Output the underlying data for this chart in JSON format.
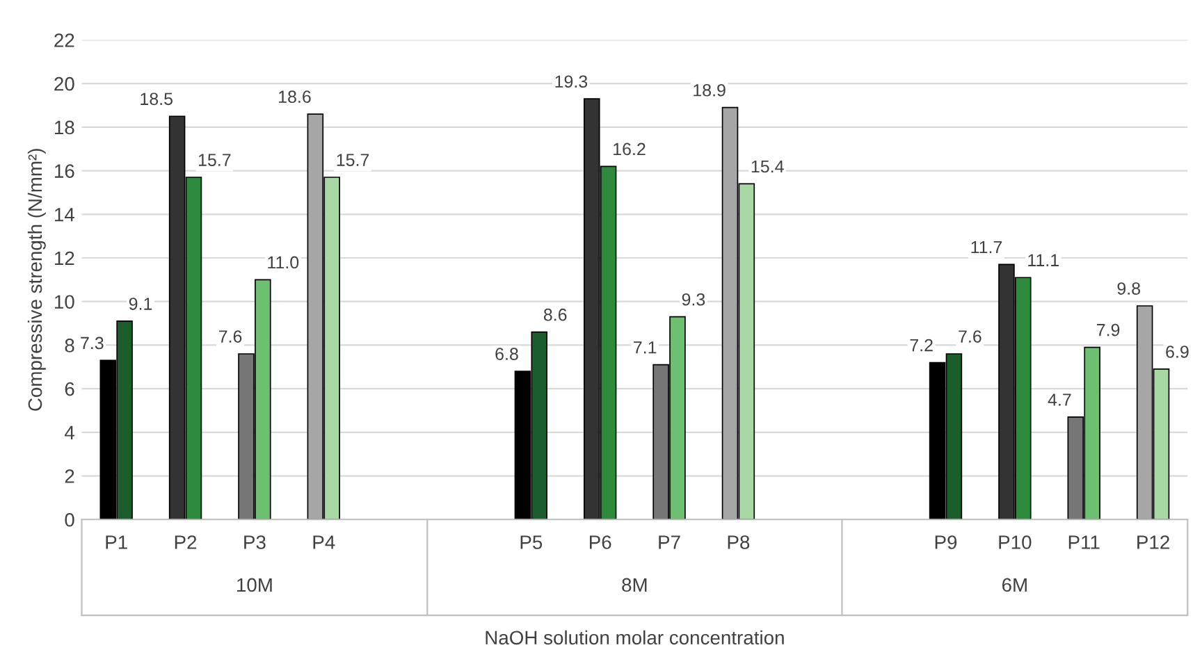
{
  "chart_data": {
    "type": "bar",
    "ylabel": "Compressive strength (N/mm²)",
    "xlabel": "NaOH solution molar concentration",
    "categories": [
      "P1",
      "P2",
      "P3",
      "P4",
      null,
      null,
      "P5",
      "P6",
      "P7",
      "P8",
      null,
      null,
      "P9",
      "P10",
      "P11",
      "P12"
    ],
    "series": [
      {
        "values": [
          7.3,
          18.5,
          7.6,
          18.6,
          null,
          null,
          6.8,
          19.3,
          7.1,
          18.9,
          null,
          null,
          7.2,
          11.7,
          4.7,
          9.8
        ],
        "value_labels": [
          "7.3",
          "18.5",
          "7.6",
          "18.6",
          null,
          null,
          "6.8",
          "19.3",
          "7.1",
          "18.9",
          null,
          null,
          "7.2",
          "11.7",
          "4.7",
          "9.8"
        ],
        "colors": [
          "#000000",
          "#333333",
          "#767676",
          "#a6a6a6",
          null,
          null,
          "#000000",
          "#333333",
          "#767676",
          "#a6a6a6",
          null,
          null,
          "#000000",
          "#333333",
          "#767676",
          "#a6a6a6"
        ]
      },
      {
        "values": [
          9.1,
          15.7,
          11.0,
          15.7,
          null,
          null,
          8.6,
          16.2,
          9.3,
          15.4,
          null,
          null,
          7.6,
          11.1,
          7.9,
          6.9
        ],
        "value_labels": [
          "9.1",
          "15.7",
          "11.0",
          "15.7",
          null,
          null,
          "8.6",
          "16.2",
          "9.3",
          "15.4",
          null,
          null,
          "7.6",
          "11.1",
          "7.9",
          "6.9"
        ],
        "colors": [
          "#1b5e2b",
          "#2e8b3e",
          "#6cc070",
          "#a8d8a4",
          null,
          null,
          "#1b5e2b",
          "#2e8b3e",
          "#6cc070",
          "#a8d8a4",
          null,
          null,
          "#1b5e2b",
          "#2e8b3e",
          "#6cc070",
          "#a8d8a4"
        ]
      }
    ],
    "annotations": [
      "10M",
      "8M",
      "6M"
    ],
    "ylim": [
      0,
      22
    ],
    "yticks": [
      0,
      2,
      4,
      6,
      8,
      10,
      12,
      14,
      16,
      18,
      20,
      22
    ],
    "grid": "y",
    "legend": false
  }
}
